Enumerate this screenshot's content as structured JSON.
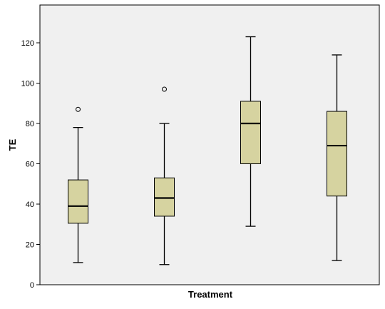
{
  "chart_data": {
    "type": "boxplot",
    "xlabel": "Treatment",
    "ylabel": "TE",
    "ylim": [
      0,
      135
    ],
    "yticks": [
      0,
      20,
      40,
      60,
      80,
      100,
      120
    ],
    "grid": false,
    "colors": {
      "box_fill": "#d6d3a0",
      "plot_background": "#f0f0f0",
      "outline": "#000000"
    },
    "boxes": [
      {
        "min": 11,
        "q1": 30.5,
        "median": 39,
        "q3": 52,
        "max": 78,
        "outliers": [
          87
        ]
      },
      {
        "min": 10,
        "q1": 34,
        "median": 43,
        "q3": 53,
        "max": 80,
        "outliers": [
          97
        ]
      },
      {
        "min": 29,
        "q1": 60,
        "median": 80,
        "q3": 91,
        "max": 123,
        "outliers": []
      },
      {
        "min": 12,
        "q1": 44,
        "median": 69,
        "q3": 86,
        "max": 114,
        "outliers": []
      }
    ]
  }
}
